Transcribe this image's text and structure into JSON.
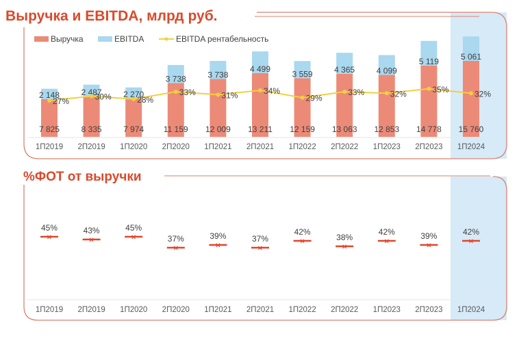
{
  "chart_data": [
    {
      "type": "bar",
      "stacked": true,
      "title": "Выручка и EBITDA, млрд руб.",
      "categories": [
        "1П2019",
        "2П2019",
        "1П2020",
        "2П2020",
        "1П2021",
        "2П2021",
        "1П2022",
        "2П2022",
        "1П2023",
        "2П2023",
        "1П2024"
      ],
      "series": [
        {
          "name": "Выручка",
          "kind": "bar",
          "color": "#ec8a78",
          "values": [
            7825,
            8335,
            7974,
            11159,
            12009,
            13211,
            12159,
            13063,
            12853,
            14778,
            15760
          ],
          "labels": [
            "7 825",
            "8 335",
            "7 974",
            "11 159",
            "12 009",
            "13 211",
            "12 159",
            "13 063",
            "12 853",
            "14 778",
            "15 760"
          ]
        },
        {
          "name": "EBITDA",
          "kind": "bar",
          "color": "#a9d8ef",
          "values": [
            2148,
            2487,
            2270,
            3738,
            3738,
            4499,
            3559,
            4365,
            4099,
            5119,
            5061
          ],
          "labels": [
            "2 148",
            "2 487",
            "2 270",
            "3 738",
            "3 738",
            "4 499",
            "3 559",
            "4 365",
            "4 099",
            "5 119",
            "5 061"
          ]
        },
        {
          "name": "EBITDA рентабельность",
          "kind": "line",
          "color": "#f2cf3f",
          "values": [
            27,
            30,
            28,
            33,
            31,
            34,
            29,
            33,
            32,
            35,
            32
          ],
          "labels": [
            "27%",
            "30%",
            "28%",
            "33%",
            "31%",
            "34%",
            "29%",
            "33%",
            "32%",
            "35%",
            "32%"
          ]
        }
      ],
      "highlight_category": "1П2024",
      "highlight_color": "#d6eaf8",
      "legend": "top-left",
      "grid": false
    },
    {
      "type": "scatter",
      "title": "%ФОТ от выручки",
      "categories": [
        "1П2019",
        "2П2019",
        "1П2020",
        "2П2020",
        "1П2021",
        "2П2021",
        "1П2022",
        "2П2022",
        "1П2023",
        "2П2023",
        "1П2024"
      ],
      "series": [
        {
          "color": "#e0462a",
          "values": [
            45,
            43,
            45,
            37,
            39,
            37,
            42,
            38,
            42,
            39,
            42
          ],
          "labels": [
            "45%",
            "43%",
            "45%",
            "37%",
            "39%",
            "37%",
            "42%",
            "38%",
            "42%",
            "39%",
            "42%"
          ]
        }
      ],
      "highlight_category": "1П2024",
      "highlight_color": "#d6eaf8",
      "grid": false
    }
  ],
  "colors": {
    "accent": "#d94a2c",
    "frame": "#d9826f"
  }
}
